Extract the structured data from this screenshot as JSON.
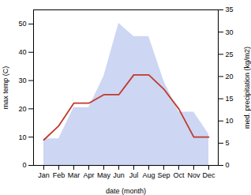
{
  "chart_data": {
    "type": "line",
    "xlabel": "date (month)",
    "ylabel": "max temp (C)",
    "y2label": "med. precipitation (kg/m2)",
    "categories": [
      "Jan",
      "Feb",
      "Mar",
      "Apr",
      "May",
      "Jun",
      "Jul",
      "Aug",
      "Sep",
      "Oct",
      "Nov",
      "Dec"
    ],
    "series": [
      {
        "type": "area",
        "axis": "y2",
        "color": "#b8c4ee",
        "values": [
          6,
          6,
          13,
          13,
          20,
          32,
          29,
          29,
          19,
          12,
          12,
          7
        ]
      },
      {
        "type": "line",
        "color": "#c0392b",
        "values": [
          9,
          14,
          22,
          22,
          25,
          25,
          32,
          32,
          27,
          20,
          10,
          10
        ]
      }
    ],
    "ylim": [
      0,
      55
    ],
    "yticks": [
      0,
      10,
      20,
      30,
      40,
      50
    ],
    "y2lim": [
      0,
      35
    ],
    "y2ticks": [
      0,
      5,
      10,
      15,
      20,
      25,
      30,
      35
    ],
    "grid": false
  }
}
